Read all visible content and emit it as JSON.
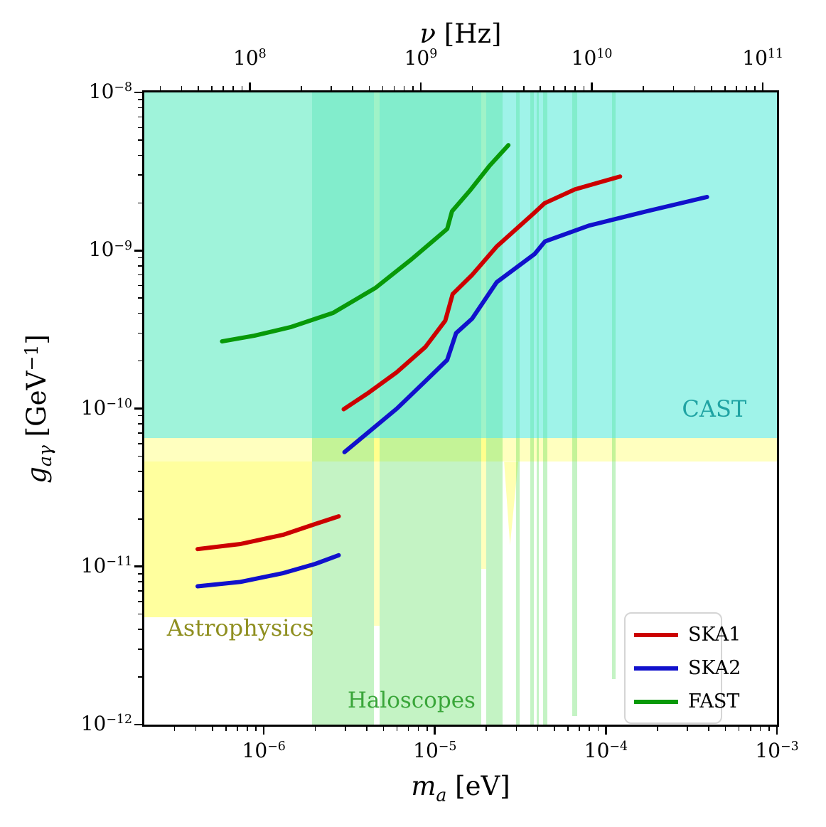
{
  "figure": {
    "xlabel": {
      "var": "m",
      "sub": "a",
      "unit": " [eV]"
    },
    "toplabel": {
      "var": "ν",
      "unit": " [Hz]"
    },
    "ylabel": {
      "var": "g",
      "sub": "aγ",
      "unit1": " [GeV",
      "sup": "−1",
      "unit2": "]"
    }
  },
  "legend": {
    "items": [
      {
        "label": "SKA1",
        "color": "#cc0000"
      },
      {
        "label": "SKA2",
        "color": "#1111cc"
      },
      {
        "label": "FAST",
        "color": "#089908"
      }
    ]
  },
  "chart_data": {
    "type": "line",
    "xlabel": "m_a [eV]",
    "ylabel": "g_agamma [GeV^-1]",
    "top_xlabel": "nu [Hz]",
    "x_scale": "log",
    "y_scale": "log",
    "xlim": [
      2e-07,
      0.001
    ],
    "ylim": [
      1e-12,
      1e-08
    ],
    "top_axis_nu_per_eV": 120900000000000.0,
    "x_ticks": [
      {
        "v": 1e-06,
        "base": "10",
        "exp": "−6"
      },
      {
        "v": 1e-05,
        "base": "10",
        "exp": "−5"
      },
      {
        "v": 0.0001,
        "base": "10",
        "exp": "−4"
      },
      {
        "v": 0.001,
        "base": "10",
        "exp": "−3"
      }
    ],
    "y_ticks": [
      {
        "v": 1e-08,
        "base": "10",
        "exp": "−8"
      },
      {
        "v": 1e-09,
        "base": "10",
        "exp": "−9"
      },
      {
        "v": 1e-10,
        "base": "10",
        "exp": "−10"
      },
      {
        "v": 1e-11,
        "base": "10",
        "exp": "−11"
      },
      {
        "v": 1e-12,
        "base": "10",
        "exp": "−12"
      }
    ],
    "top_ticks": [
      {
        "v": 100000000.0,
        "base": "10",
        "exp": "8"
      },
      {
        "v": 1000000000.0,
        "base": "10",
        "exp": "9"
      },
      {
        "v": 10000000000.0,
        "base": "10",
        "exp": "10"
      },
      {
        "v": 100000000000.0,
        "base": "10",
        "exp": "11"
      }
    ],
    "regions": [
      {
        "name": "astro-tint-left",
        "shape": "rect",
        "color": "rgba(255,255,0,0.12)",
        "m": [
          2e-07,
          1.92e-06
        ],
        "g": [
          6.5e-11,
          1e-08
        ]
      },
      {
        "name": "astro-band",
        "shape": "rect",
        "color": "rgba(255,255,0,0.25)",
        "m": [
          2e-07,
          0.001
        ],
        "g": [
          4.6e-11,
          6.5e-11
        ]
      },
      {
        "name": "astro-block",
        "shape": "rect",
        "color": "rgba(255,255,0,0.38)",
        "m": [
          2e-07,
          1.92e-06
        ],
        "g": [
          4.8e-12,
          4.6e-11
        ]
      },
      {
        "name": "astro-strip-1",
        "shape": "rect",
        "color": "rgba(255,255,0,0.26)",
        "m": [
          4.38e-06,
          4.73e-06
        ],
        "g": [
          4.2e-12,
          1e-08
        ]
      },
      {
        "name": "astro-strip-2",
        "shape": "rect",
        "color": "rgba(255,255,0,0.26)",
        "m": [
          1.87e-05,
          2e-05
        ],
        "g": [
          9.7e-12,
          1e-08
        ]
      },
      {
        "name": "astro-wedge",
        "shape": "wedge",
        "color": "rgba(255,255,0,0.30)",
        "m": [
          2.54e-05,
          3.07e-05
        ],
        "g": [
          1.36e-11,
          4.6e-11
        ]
      },
      {
        "name": "haloscope-band-a",
        "shape": "rect",
        "color": "rgba(60,215,60,0.30)",
        "m": [
          1.92e-06,
          4.38e-06
        ],
        "g": [
          1e-12,
          1e-08
        ]
      },
      {
        "name": "haloscope-band-b",
        "shape": "rect",
        "color": "rgba(60,215,60,0.30)",
        "m": [
          4.73e-06,
          1.87e-05
        ],
        "g": [
          1e-12,
          1e-08
        ]
      },
      {
        "name": "haloscope-stripe-1",
        "shape": "rect",
        "color": "rgba(60,215,60,0.30)",
        "m": [
          2e-05,
          2.49e-05
        ],
        "g": [
          1e-12,
          1e-08
        ]
      },
      {
        "name": "haloscope-stripe-2",
        "shape": "rect",
        "color": "rgba(60,215,60,0.30)",
        "m": [
          2.98e-05,
          3.13e-05
        ],
        "g": [
          1e-12,
          1e-08
        ]
      },
      {
        "name": "haloscope-stripe-3",
        "shape": "rect",
        "color": "rgba(60,215,60,0.30)",
        "m": [
          3.62e-05,
          3.8e-05
        ],
        "g": [
          1e-12,
          1e-08
        ]
      },
      {
        "name": "haloscope-stripe-4",
        "shape": "rect",
        "color": "rgba(60,215,60,0.30)",
        "m": [
          3.94e-05,
          4.05e-05
        ],
        "g": [
          1e-12,
          1e-08
        ]
      },
      {
        "name": "haloscope-stripe-5",
        "shape": "rect",
        "color": "rgba(60,215,60,0.30)",
        "m": [
          4.28e-05,
          4.53e-05
        ],
        "g": [
          1e-12,
          1e-08
        ]
      },
      {
        "name": "haloscope-stripe-6",
        "shape": "rect",
        "color": "rgba(60,215,60,0.30)",
        "m": [
          6.35e-05,
          6.78e-05
        ],
        "g": [
          1.13e-12,
          1e-08
        ]
      },
      {
        "name": "haloscope-stripe-7",
        "shape": "rect",
        "color": "rgba(60,215,60,0.30)",
        "m": [
          0.000109,
          0.000114
        ],
        "g": [
          1.95e-12,
          1e-08
        ]
      },
      {
        "name": "cast-region",
        "shape": "rect",
        "color": "rgba(64,232,212,0.50)",
        "m": [
          2e-07,
          0.001
        ],
        "g": [
          6.5e-11,
          1e-08
        ]
      }
    ],
    "region_labels": [
      {
        "name": "cast-label",
        "text": "CAST",
        "m": 0.00043,
        "g": 1e-10,
        "color": "#1fa3a3",
        "size": 32
      },
      {
        "name": "astrophysics-label",
        "text": "Astrophysics",
        "m": 7.3e-07,
        "g": 4.1e-12,
        "color": "#8f8f20",
        "size": 32
      },
      {
        "name": "haloscopes-label",
        "text": "Haloscopes",
        "m": 7.3e-06,
        "g": 1.42e-12,
        "color": "#3aa63a",
        "size": 31
      }
    ],
    "series": [
      {
        "name": "SKA1",
        "color": "#cc0000",
        "linewidth": 6,
        "segments": [
          [
            [
              4.1e-07,
              1.29e-11
            ],
            [
              7.3e-07,
              1.39e-11
            ],
            [
              1.3e-06,
              1.59e-11
            ],
            [
              2e-06,
              1.86e-11
            ],
            [
              2.74e-06,
              2.08e-11
            ]
          ],
          [
            [
              2.93e-06,
              9.9e-11
            ],
            [
              4.1e-06,
              1.26e-10
            ],
            [
              6e-06,
              1.7e-10
            ],
            [
              8.8e-06,
              2.45e-10
            ],
            [
              1.15e-05,
              3.6e-10
            ],
            [
              1.27e-05,
              5.3e-10
            ],
            [
              1.65e-05,
              7e-10
            ],
            [
              2.3e-05,
              1.06e-09
            ],
            [
              3.79e-05,
              1.72e-09
            ],
            [
              4.38e-05,
              1.99e-09
            ],
            [
              6.6e-05,
              2.44e-09
            ],
            [
              0.000121,
              2.94e-09
            ]
          ]
        ]
      },
      {
        "name": "SKA2",
        "color": "#1111cc",
        "linewidth": 6,
        "segments": [
          [
            [
              4.1e-07,
              7.5e-12
            ],
            [
              7.3e-07,
              8e-12
            ],
            [
              1.3e-06,
              9.1e-12
            ],
            [
              2e-06,
              1.04e-11
            ],
            [
              2.74e-06,
              1.18e-11
            ]
          ],
          [
            [
              2.96e-06,
              5.3e-11
            ],
            [
              4.1e-06,
              7.1e-11
            ],
            [
              6e-06,
              1e-10
            ],
            [
              8.8e-06,
              1.49e-10
            ],
            [
              1.18e-05,
              2.03e-10
            ],
            [
              1.33e-05,
              3e-10
            ],
            [
              1.65e-05,
              3.7e-10
            ],
            [
              2.3e-05,
              6.3e-10
            ],
            [
              3.83e-05,
              9.5e-10
            ],
            [
              4.4e-05,
              1.14e-09
            ],
            [
              8e-05,
              1.44e-09
            ],
            [
              0.000173,
              1.77e-09
            ],
            [
              0.00039,
              2.18e-09
            ]
          ]
        ]
      },
      {
        "name": "FAST",
        "color": "#089908",
        "linewidth": 6,
        "segments": [
          [
            [
              5.7e-07,
              2.66e-10
            ],
            [
              8.8e-07,
              2.89e-10
            ],
            [
              1.43e-06,
              3.27e-10
            ],
            [
              2.54e-06,
              4.03e-10
            ],
            [
              4.5e-06,
              5.8e-10
            ],
            [
              7.3e-06,
              8.8e-10
            ],
            [
              1.05e-05,
              1.23e-09
            ],
            [
              1.18e-05,
              1.37e-09
            ],
            [
              1.26e-05,
              1.77e-09
            ],
            [
              1.6e-05,
              2.39e-09
            ],
            [
              2.09e-05,
              3.44e-09
            ],
            [
              2.69e-05,
              4.64e-09
            ]
          ]
        ]
      }
    ]
  }
}
